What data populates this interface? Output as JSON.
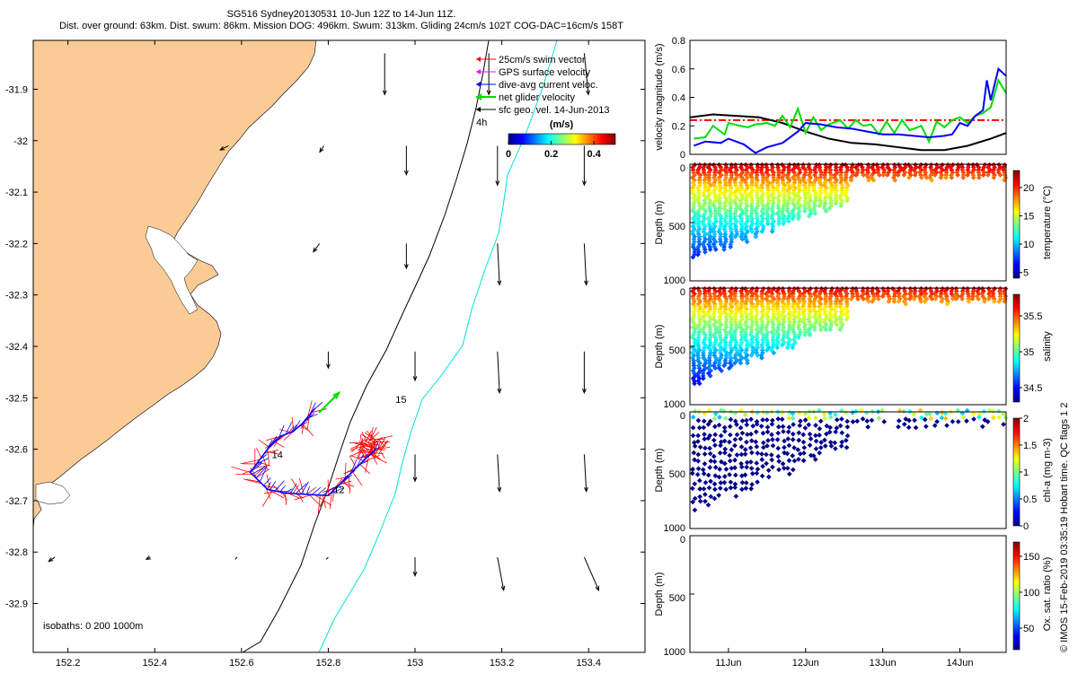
{
  "header": {
    "line1": "SG516 Sydney20130531 10-Jun 12Z to 14-Jun 11Z.",
    "line2": "Dist. over ground: 63km. Dist. swum: 86km. Mission DOG: 496km. Swum: 313km. Gliding 24cm/s 102T COG-DAC=16cm/s 158T"
  },
  "colors": {
    "land": "#fbcb96",
    "isobath200": "#000000",
    "isobath1000": "#00e0e0",
    "swim": "#ff0000",
    "gps": "#ff00ff",
    "dac": "#0000ff",
    "net": "#00dd00",
    "geo": "#000000"
  },
  "chart_data": [
    {
      "type": "map",
      "x_ticks": [
        "152.2",
        "152.4",
        "152.6",
        "152.8",
        "153",
        "153.2",
        "153.4"
      ],
      "x_tick_values": [
        152.2,
        152.4,
        152.6,
        152.8,
        153.0,
        153.2,
        153.4
      ],
      "y_ticks": [
        "-31.9",
        "-32",
        "-32.1",
        "-32.2",
        "-32.3",
        "-32.4",
        "-32.5",
        "-32.6",
        "-32.7",
        "-32.8",
        "-32.9"
      ],
      "y_tick_values": [
        -31.9,
        -32.0,
        -32.1,
        -32.2,
        -32.3,
        -32.4,
        -32.5,
        -32.6,
        -32.7,
        -32.8,
        -32.9
      ],
      "xlim": [
        152.12,
        153.53
      ],
      "ylim": [
        -32.995,
        -31.805
      ],
      "legend": [
        "25cm/s swim vector",
        "GPS surface velocity",
        "dive-avg current veloc.",
        "net glider velocity",
        "sfc geo. vel. 14-Jun-2013"
      ],
      "legend_placement": "top-right",
      "annotation": "4h",
      "colorbar": {
        "label": "(m/s)",
        "ticks": [
          "0",
          "0.2",
          "0.4"
        ],
        "tick_values": [
          0,
          0.2,
          0.4
        ],
        "range": [
          0,
          0.5
        ]
      },
      "isobath_note": "isobaths: 0   200   1000m",
      "day_labels": [
        {
          "text": "12",
          "lon": 152.812,
          "lat": -32.685
        },
        {
          "text": "14",
          "lon": 152.67,
          "lat": -32.617
        },
        {
          "text": "15",
          "lon": 152.955,
          "lat": -32.51
        }
      ],
      "track": [
        {
          "lon": 152.905,
          "lat": -32.605
        },
        {
          "lon": 152.89,
          "lat": -32.615
        },
        {
          "lon": 152.86,
          "lat": -32.64
        },
        {
          "lon": 152.83,
          "lat": -32.665
        },
        {
          "lon": 152.8,
          "lat": -32.69
        },
        {
          "lon": 152.75,
          "lat": -32.688
        },
        {
          "lon": 152.7,
          "lat": -32.685
        },
        {
          "lon": 152.66,
          "lat": -32.678
        },
        {
          "lon": 152.62,
          "lat": -32.645
        },
        {
          "lon": 152.66,
          "lat": -32.6
        },
        {
          "lon": 152.69,
          "lat": -32.575
        },
        {
          "lon": 152.72,
          "lat": -32.565
        },
        {
          "lon": 152.74,
          "lat": -32.55
        },
        {
          "lon": 152.77,
          "lat": -32.52
        }
      ],
      "geo_vectors": [
        {
          "lon": 152.93,
          "lat": -31.83,
          "u": 0.0,
          "v": -0.2
        },
        {
          "lon": 153.17,
          "lat": -31.83,
          "u": 0.0,
          "v": -0.2
        },
        {
          "lon": 153.39,
          "lat": -31.83,
          "u": 0.02,
          "v": -0.2
        },
        {
          "lon": 152.57,
          "lat": -32.01,
          "u": -0.04,
          "v": -0.02
        },
        {
          "lon": 152.79,
          "lat": -32.01,
          "u": -0.02,
          "v": -0.03
        },
        {
          "lon": 152.98,
          "lat": -32.01,
          "u": 0.0,
          "v": -0.14
        },
        {
          "lon": 153.19,
          "lat": -32.01,
          "u": 0.0,
          "v": -0.19
        },
        {
          "lon": 153.39,
          "lat": -32.01,
          "u": 0.0,
          "v": -0.19
        },
        {
          "lon": 152.78,
          "lat": -32.2,
          "u": -0.03,
          "v": -0.04
        },
        {
          "lon": 152.98,
          "lat": -32.2,
          "u": 0.0,
          "v": -0.12
        },
        {
          "lon": 153.19,
          "lat": -32.2,
          "u": 0.01,
          "v": -0.2
        },
        {
          "lon": 153.39,
          "lat": -32.2,
          "u": 0.01,
          "v": -0.2
        },
        {
          "lon": 152.8,
          "lat": -32.41,
          "u": 0.0,
          "v": -0.08
        },
        {
          "lon": 153.0,
          "lat": -32.41,
          "u": 0.0,
          "v": -0.14
        },
        {
          "lon": 153.19,
          "lat": -32.41,
          "u": 0.01,
          "v": -0.2
        },
        {
          "lon": 153.39,
          "lat": -32.41,
          "u": 0.0,
          "v": -0.2
        },
        {
          "lon": 153.0,
          "lat": -32.61,
          "u": 0.0,
          "v": -0.13
        },
        {
          "lon": 153.19,
          "lat": -32.61,
          "u": 0.01,
          "v": -0.18
        },
        {
          "lon": 153.39,
          "lat": -32.61,
          "u": 0.01,
          "v": -0.18
        },
        {
          "lon": 152.17,
          "lat": -32.81,
          "u": -0.03,
          "v": -0.02
        },
        {
          "lon": 152.39,
          "lat": -32.81,
          "u": -0.02,
          "v": -0.01
        },
        {
          "lon": 152.59,
          "lat": -32.81,
          "u": -0.01,
          "v": -0.01
        },
        {
          "lon": 152.8,
          "lat": -32.81,
          "u": -0.01,
          "v": -0.01
        },
        {
          "lon": 153.0,
          "lat": -32.81,
          "u": 0.0,
          "v": -0.09
        },
        {
          "lon": 153.19,
          "lat": -32.81,
          "u": 0.03,
          "v": -0.16
        },
        {
          "lon": 153.39,
          "lat": -32.81,
          "u": 0.07,
          "v": -0.16
        }
      ]
    },
    {
      "type": "line",
      "ylabel": "velocity magnitude (m/s)",
      "ylim": [
        0,
        0.8
      ],
      "y_ticks": [
        "0",
        "0.2",
        "0.4",
        "0.6",
        "0.8"
      ],
      "y_tick_values": [
        0,
        0.2,
        0.4,
        0.6,
        0.8
      ],
      "xlim": [
        10.5,
        14.6
      ],
      "series": [
        {
          "color": "#ff0000",
          "style": "dashdot",
          "x": [
            10.5,
            14.6
          ],
          "y": [
            0.24,
            0.24
          ]
        },
        {
          "color": "#000000",
          "x": [
            10.5,
            10.8,
            11.1,
            11.4,
            11.7,
            12.0,
            12.3,
            12.6,
            12.9,
            13.2,
            13.5,
            13.8,
            14.1,
            14.4,
            14.6
          ],
          "y": [
            0.26,
            0.28,
            0.27,
            0.26,
            0.22,
            0.16,
            0.11,
            0.08,
            0.07,
            0.05,
            0.03,
            0.03,
            0.06,
            0.11,
            0.15
          ]
        },
        {
          "color": "#00dd00",
          "x": [
            10.55,
            10.7,
            10.8,
            10.95,
            11.0,
            11.15,
            11.25,
            11.35,
            11.5,
            11.6,
            11.7,
            11.8,
            11.9,
            12.0,
            12.1,
            12.2,
            12.3,
            12.45,
            12.55,
            12.65,
            12.75,
            12.85,
            12.95,
            13.05,
            13.15,
            13.25,
            13.35,
            13.5,
            13.6,
            13.7,
            13.8,
            13.9,
            14.0,
            14.1,
            14.2,
            14.3,
            14.4,
            14.5,
            14.6
          ],
          "y": [
            0.11,
            0.12,
            0.2,
            0.14,
            0.22,
            0.2,
            0.19,
            0.21,
            0.22,
            0.2,
            0.27,
            0.19,
            0.32,
            0.15,
            0.26,
            0.17,
            0.21,
            0.24,
            0.18,
            0.24,
            0.2,
            0.21,
            0.14,
            0.23,
            0.15,
            0.24,
            0.17,
            0.2,
            0.09,
            0.23,
            0.19,
            0.24,
            0.26,
            0.22,
            0.27,
            0.29,
            0.33,
            0.52,
            0.43
          ]
        },
        {
          "color": "#0000ff",
          "x": [
            10.55,
            10.7,
            10.9,
            11.0,
            11.2,
            11.35,
            11.5,
            11.7,
            11.9,
            12.0,
            12.2,
            12.4,
            12.6,
            12.8,
            13.0,
            13.2,
            13.4,
            13.6,
            13.8,
            13.9,
            14.0,
            14.1,
            14.2,
            14.3,
            14.35,
            14.4,
            14.5,
            14.6
          ],
          "y": [
            0.06,
            0.09,
            0.08,
            0.11,
            0.07,
            0.01,
            0.05,
            0.08,
            0.16,
            0.22,
            0.21,
            0.19,
            0.18,
            0.16,
            0.14,
            0.14,
            0.13,
            0.12,
            0.13,
            0.14,
            0.22,
            0.2,
            0.27,
            0.31,
            0.52,
            0.38,
            0.6,
            0.55
          ]
        }
      ]
    },
    {
      "type": "scatter",
      "ylabel": "Depth (m)",
      "colorbar_label": "temperature (°C)",
      "colorbar_ticks": [
        "5",
        "10",
        "15",
        "20"
      ],
      "colorbar_tick_values": [
        5,
        10,
        15,
        20
      ],
      "crange": [
        4,
        23
      ],
      "y_ticks": [
        "0",
        "500",
        "1000"
      ],
      "y_tick_values": [
        0,
        500,
        1000
      ],
      "ylim": [
        0,
        1000
      ],
      "xlim": [
        10.5,
        14.6
      ],
      "profiles": {
        "t_start": 10.55,
        "t_end": 14.58,
        "count": 60,
        "shallow_after": 12.58,
        "shallow_max": 150,
        "deep_max_start": 800,
        "deep_max_end": 300,
        "surface_value": 22.5,
        "deep_value": 5,
        "ramp_max": 950
      },
      "gaps": []
    },
    {
      "type": "scatter",
      "ylabel": "Depth (m)",
      "colorbar_label": "salinity",
      "colorbar_ticks": [
        "34.5",
        "35",
        "35.5"
      ],
      "colorbar_tick_values": [
        34.5,
        35,
        35.5
      ],
      "crange": [
        34.3,
        35.8
      ],
      "y_ticks": [
        "0",
        "500",
        "1000"
      ],
      "y_tick_values": [
        0,
        500,
        1000
      ],
      "ylim": [
        0,
        1000
      ],
      "xlim": [
        10.5,
        14.6
      ],
      "profiles": {
        "t_start": 10.55,
        "t_end": 14.58,
        "count": 60,
        "shallow_after": 12.58,
        "shallow_max": 150,
        "deep_max_start": 800,
        "deep_max_end": 300,
        "surface_value": 35.7,
        "deep_value": 34.4,
        "ramp_max": 900
      },
      "gaps": []
    },
    {
      "type": "scatter",
      "ylabel": "Depth (m)",
      "colorbar_label": "chl-a (mg m-3)",
      "colorbar_ticks": [
        "0",
        "0.5",
        "1",
        "1.5",
        "2"
      ],
      "colorbar_tick_values": [
        0,
        0.5,
        1,
        1.5,
        2
      ],
      "crange": [
        0,
        2
      ],
      "y_ticks": [
        "0",
        "500",
        "1000"
      ],
      "y_tick_values": [
        0,
        500,
        1000
      ],
      "ylim": [
        0,
        1000
      ],
      "xlim": [
        10.5,
        14.6
      ],
      "profiles": {
        "t_start": 10.55,
        "t_end": 14.58,
        "count": 60,
        "shallow_after": 12.58,
        "shallow_max": 150,
        "deep_max_start": 850,
        "deep_max_end": 300,
        "surface_value": 1.0,
        "deep_value": 0.0,
        "ramp_max": 60,
        "sparse": true
      },
      "gaps": [
        [
          13.02,
          13.15
        ]
      ]
    },
    {
      "type": "scatter",
      "ylabel": "Depth (m)",
      "colorbar_label": "Ox. sat. ratio (%)",
      "colorbar_ticks": [
        "50",
        "100",
        "150"
      ],
      "colorbar_tick_values": [
        50,
        100,
        150
      ],
      "crange": [
        20,
        170
      ],
      "y_ticks": [
        "0",
        "500",
        "1000"
      ],
      "y_tick_values": [
        0,
        500,
        1000
      ],
      "ylim": [
        0,
        1000
      ],
      "xlim": [
        10.5,
        14.6
      ],
      "x_ticks": [
        "11Jun",
        "12Jun",
        "13Jun",
        "14Jun"
      ],
      "x_tick_values": [
        11,
        12,
        13,
        14
      ],
      "profiles": null
    }
  ],
  "side_note": "© IMOS 15-Feb-2019 03:35:19 Hobart time. QC flags 1  2"
}
